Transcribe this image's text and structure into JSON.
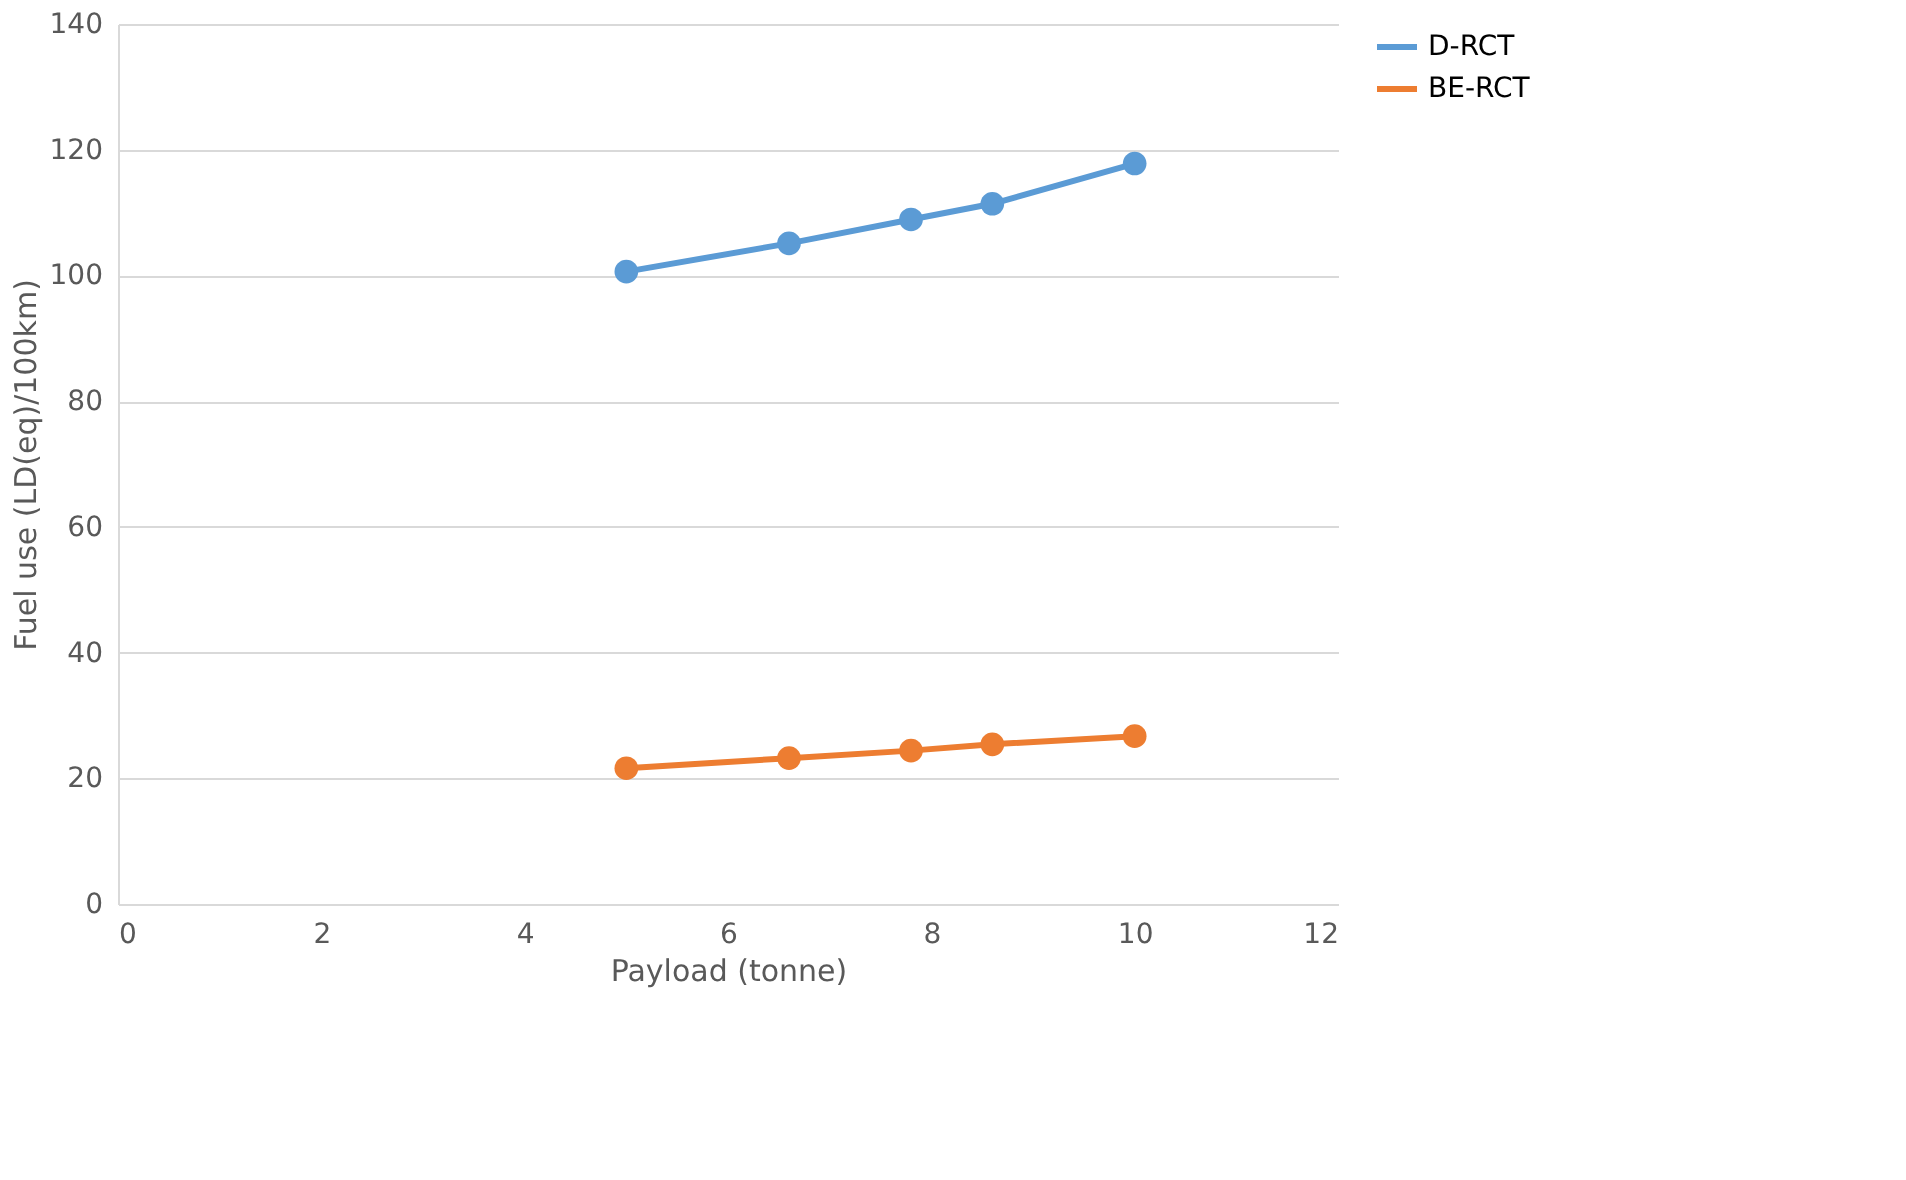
{
  "chart_data": {
    "type": "line",
    "xlabel": "Payload (tonne)",
    "ylabel": "Fuel use (LD(eq)/100km)",
    "x": [
      5,
      6.6,
      7.8,
      8.6,
      10
    ],
    "series": [
      {
        "name": "D-RCT",
        "color": "#5b9bd5",
        "values": [
          100.6,
          105.1,
          108.9,
          111.4,
          117.8
        ]
      },
      {
        "name": "BE-RCT",
        "color": "#ed7d31",
        "values": [
          21.6,
          23.2,
          24.4,
          25.4,
          26.7
        ]
      }
    ],
    "xlim": [
      0,
      12
    ],
    "xticks": [
      0,
      2,
      4,
      6,
      8,
      10,
      12
    ],
    "ylim": [
      0,
      140
    ],
    "yticks": [
      0,
      20,
      40,
      60,
      80,
      100,
      120,
      140
    ],
    "grid": "y",
    "legend": "right",
    "marker": "circle",
    "line_style": "solid"
  }
}
